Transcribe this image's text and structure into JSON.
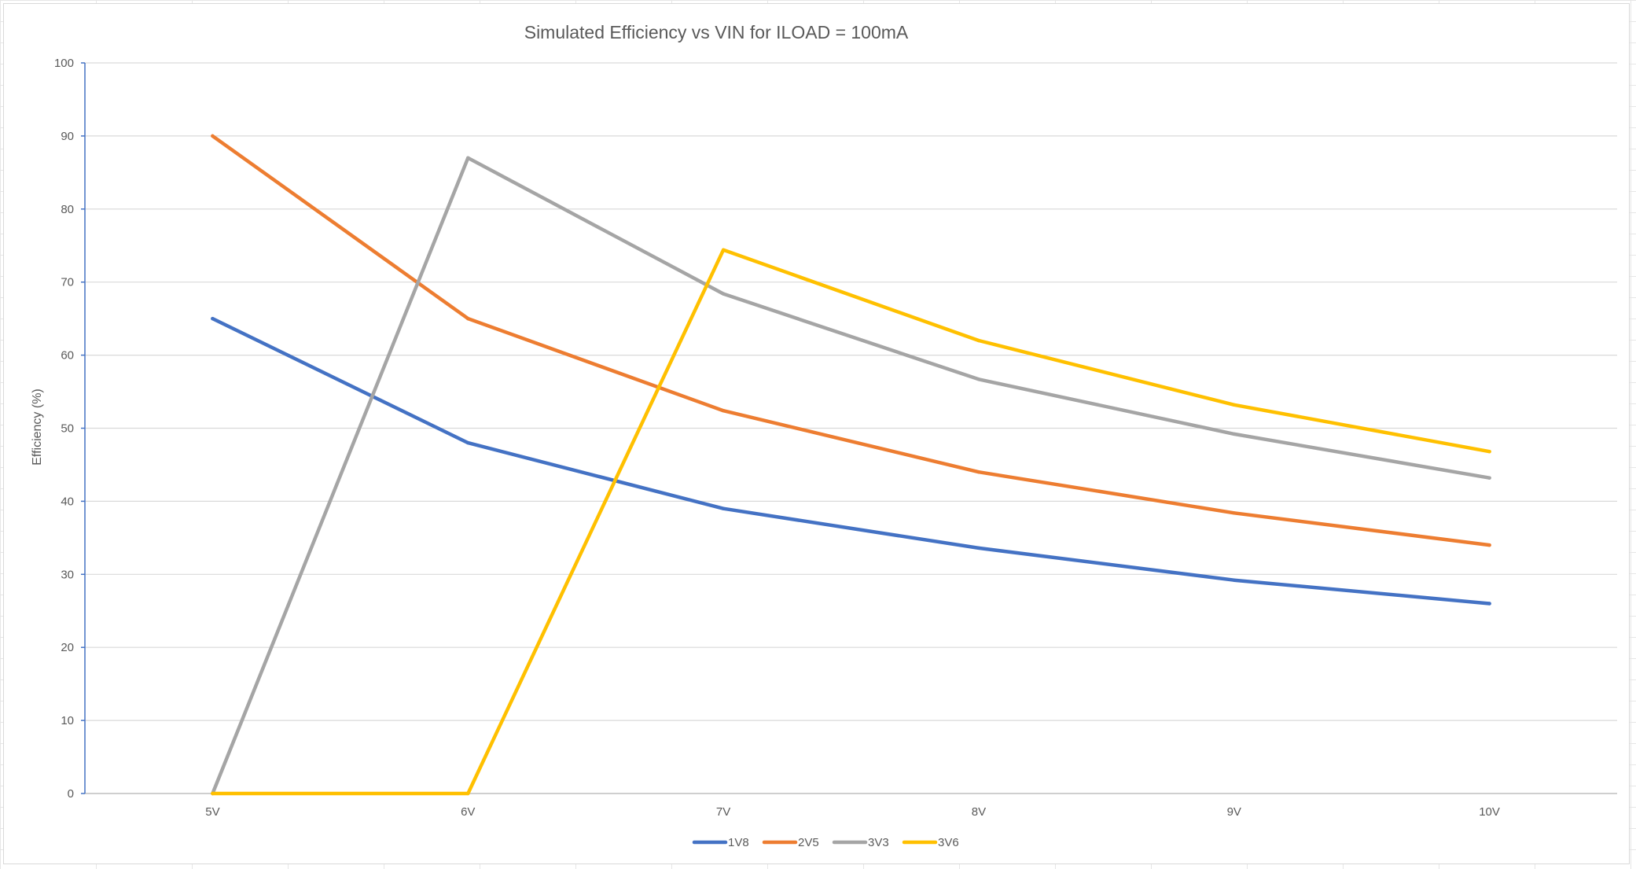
{
  "chart_data": {
    "type": "line",
    "title": "Simulated Efficiency vs VIN for ILOAD = 100mA",
    "xlabel": "",
    "ylabel": "Efficiency (%)",
    "categories": [
      "5V",
      "6V",
      "7V",
      "8V",
      "9V",
      "10V"
    ],
    "ylim": [
      0,
      100
    ],
    "yticks": [
      0,
      10,
      20,
      30,
      40,
      50,
      60,
      70,
      80,
      90,
      100
    ],
    "grid": true,
    "legend_position": "bottom",
    "series": [
      {
        "name": "1V8",
        "color": "#4472C4",
        "values": [
          65,
          48,
          39,
          33.6,
          29.2,
          26
        ]
      },
      {
        "name": "2V5",
        "color": "#ED7D31",
        "values": [
          90,
          65,
          52.4,
          44,
          38.4,
          34
        ]
      },
      {
        "name": "3V3",
        "color": "#A5A5A5",
        "values": [
          0,
          87,
          68.4,
          56.7,
          49.2,
          43.2
        ]
      },
      {
        "name": "3V6",
        "color": "#FFC000",
        "values": [
          0,
          0,
          74.4,
          62,
          53.2,
          46.8
        ]
      }
    ]
  }
}
